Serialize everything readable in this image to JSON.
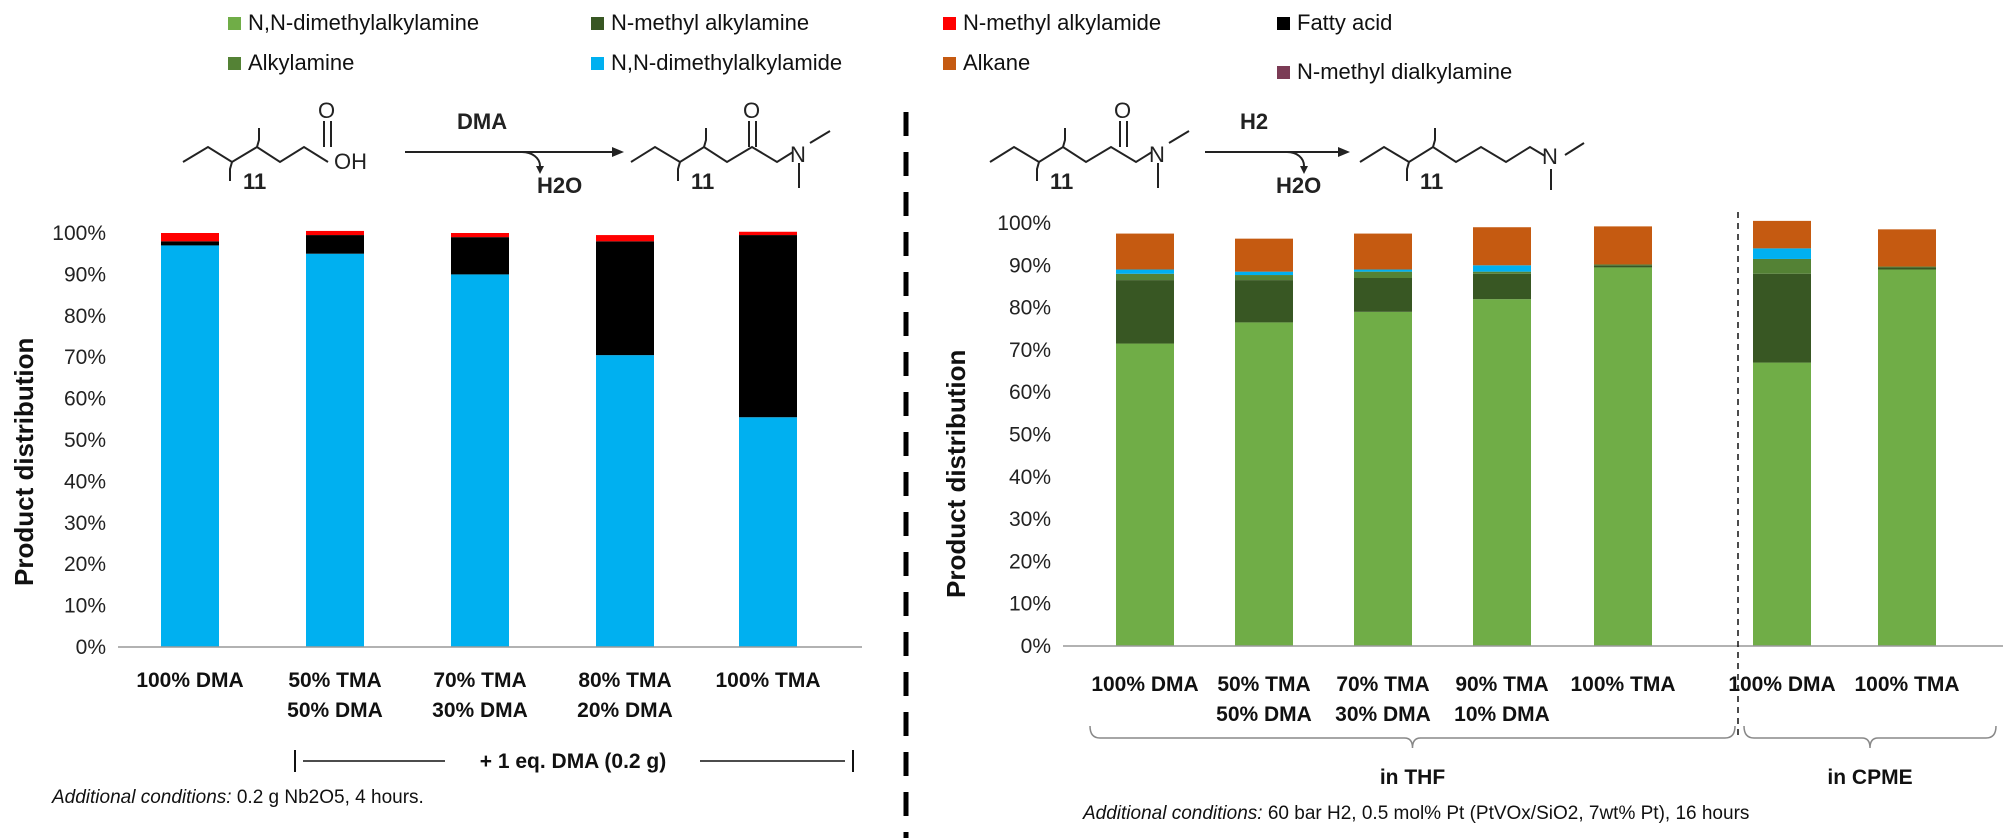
{
  "legend": [
    {
      "label": "N,N-dimethylalkylamine",
      "color": "#70AD47"
    },
    {
      "label": "Alkylamine",
      "color": "#548235"
    },
    {
      "label": "N-methyl alkylamine",
      "color": "#385723"
    },
    {
      "label": "N,N-dimethylalkylamide",
      "color": "#00B0F0"
    },
    {
      "label": "N-methyl alkylamide",
      "color": "#FF0000"
    },
    {
      "label": "Alkane",
      "color": "#C55A11"
    },
    {
      "label": "Fatty acid",
      "color": "#000000"
    },
    {
      "label": "N-methyl dialkylamine",
      "color": "#7B3B55"
    }
  ],
  "schemes": {
    "left_reagent": "DMA",
    "left_byproduct": "H2O",
    "right_reagent": "H2",
    "right_byproduct": "H2O",
    "chain_index": "11",
    "acid_oh": "OH",
    "oxygen": "O",
    "nitrogen": "N"
  },
  "chart_data": [
    {
      "type": "bar",
      "stacked": true,
      "ylabel": "Product distribution",
      "ylim": [
        0,
        100
      ],
      "yticks": [
        "0%",
        "10%",
        "20%",
        "30%",
        "40%",
        "50%",
        "60%",
        "70%",
        "80%",
        "90%",
        "100%"
      ],
      "categories": [
        [
          "100% DMA"
        ],
        [
          "50% TMA",
          "50% DMA"
        ],
        [
          "70% TMA",
          "30% DMA"
        ],
        [
          "80% TMA",
          "20% DMA"
        ],
        [
          "100% TMA"
        ]
      ],
      "series": [
        {
          "name": "N,N-dimethylalkylamide",
          "color": "#00B0F0",
          "values": [
            97,
            95,
            90,
            70.5,
            55.5
          ]
        },
        {
          "name": "Fatty acid",
          "color": "#000000",
          "values": [
            1,
            4.5,
            9,
            27.5,
            44
          ]
        },
        {
          "name": "N-methyl alkylamide",
          "color": "#FF0000",
          "values": [
            2,
            1,
            1,
            1.5,
            0.8
          ]
        }
      ],
      "bracket_label": "+ 1 eq. DMA (0.2 g)",
      "note_prefix": "Additional conditions:",
      "note_text": "0.2 g Nb2O5, 4 hours."
    },
    {
      "type": "bar",
      "stacked": true,
      "ylabel": "Product distribution",
      "ylim": [
        0,
        100
      ],
      "yticks": [
        "0%",
        "10%",
        "20%",
        "30%",
        "40%",
        "50%",
        "60%",
        "70%",
        "80%",
        "90%",
        "100%"
      ],
      "categories": [
        [
          "100% DMA"
        ],
        [
          "50% TMA",
          "50% DMA"
        ],
        [
          "70% TMA",
          "30% DMA"
        ],
        [
          "90% TMA",
          "10% DMA"
        ],
        [
          "100% TMA"
        ],
        [
          "100% DMA"
        ],
        [
          "100% TMA"
        ]
      ],
      "series": [
        {
          "name": "N,N-dimethylalkylamine",
          "color": "#70AD47",
          "values": [
            71.5,
            76.5,
            79,
            82,
            89.5,
            67,
            89
          ]
        },
        {
          "name": "N-methyl alkylamine",
          "color": "#385723",
          "values": [
            15,
            10,
            8,
            6,
            0.5,
            21,
            0.5
          ]
        },
        {
          "name": "Alkylamine",
          "color": "#548235",
          "values": [
            1.5,
            1.2,
            1.5,
            0.5,
            0.2,
            3.5,
            0.2
          ]
        },
        {
          "name": "N,N-dimethylalkylamide",
          "color": "#00B0F0",
          "values": [
            1,
            0.8,
            0.5,
            1.5,
            0,
            2.5,
            0
          ]
        },
        {
          "name": "N-methyl dialkylamine",
          "color": "#7B3B55",
          "values": [
            0,
            0,
            0,
            0,
            0,
            0,
            0
          ]
        },
        {
          "name": "Alkane",
          "color": "#C55A11",
          "values": [
            8.5,
            7.8,
            8.5,
            9,
            9,
            6.5,
            8.8
          ]
        }
      ],
      "groups": [
        {
          "label": "in THF",
          "from": 0,
          "to": 4
        },
        {
          "label": "in CPME",
          "from": 5,
          "to": 6
        }
      ],
      "note_prefix": "Additional conditions:",
      "note_text": "60 bar H2, 0.5 mol% Pt (PtVOx/SiO2, 7wt% Pt), 16 hours"
    }
  ]
}
